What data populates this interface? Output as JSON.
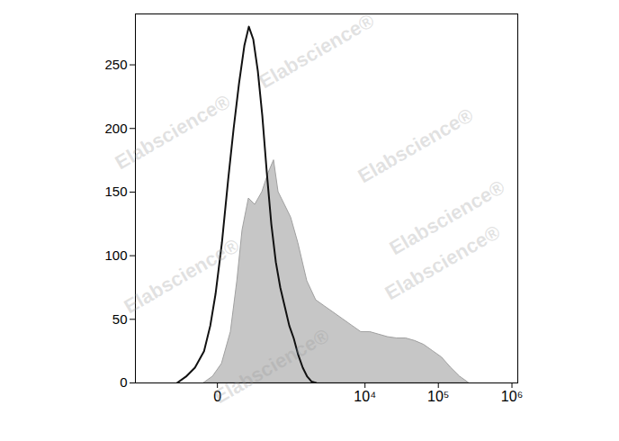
{
  "chart_data": {
    "type": "histogram",
    "annotations": [
      "Elabscience®"
    ],
    "log": "x",
    "xlim": [
      -1200,
      1200000
    ],
    "xticks": [
      0,
      {
        "value": 10000,
        "label": "10⁴"
      },
      {
        "value": 100000,
        "label": "10⁵"
      },
      {
        "value": 1000000,
        "label": "10⁶"
      }
    ],
    "ylim": [
      0,
      290
    ],
    "yticks": [
      0,
      50,
      100,
      150,
      200,
      250
    ],
    "grid": false,
    "series": [
      {
        "type": "area",
        "color": "#c6c6c6",
        "x": [
          -52,
          -15,
          15,
          52,
          86,
          119,
          167,
          225,
          307,
          395,
          486,
          575,
          722,
          900,
          1152,
          1558,
          2090,
          2800,
          3750,
          4990,
          6650,
          8840,
          11730,
          15570,
          20650,
          27380,
          36300,
          48100,
          63700,
          84400,
          111800,
          148200,
          196200,
          260000
        ],
        "values": [
          0,
          5,
          15,
          40,
          80,
          120,
          145,
          140,
          150,
          165,
          175,
          150,
          140,
          130,
          110,
          80,
          65,
          60,
          55,
          50,
          45,
          40,
          40,
          38,
          36,
          35,
          35,
          33,
          30,
          25,
          20,
          12,
          5,
          0
        ]
      },
      {
        "type": "line",
        "color": "#111111",
        "x": [
          -254,
          -167,
          -102,
          -52,
          -25,
          -6,
          15,
          40,
          66,
          96,
          132,
          167,
          207,
          254,
          307,
          369,
          439,
          521,
          614,
          722,
          846,
          988,
          1152,
          1341,
          1558,
          1807,
          2090
        ],
        "values": [
          0,
          5,
          12,
          25,
          45,
          70,
          110,
          160,
          200,
          235,
          265,
          280,
          270,
          245,
          210,
          165,
          125,
          95,
          75,
          60,
          45,
          35,
          22,
          12,
          5,
          1,
          0
        ]
      }
    ]
  }
}
